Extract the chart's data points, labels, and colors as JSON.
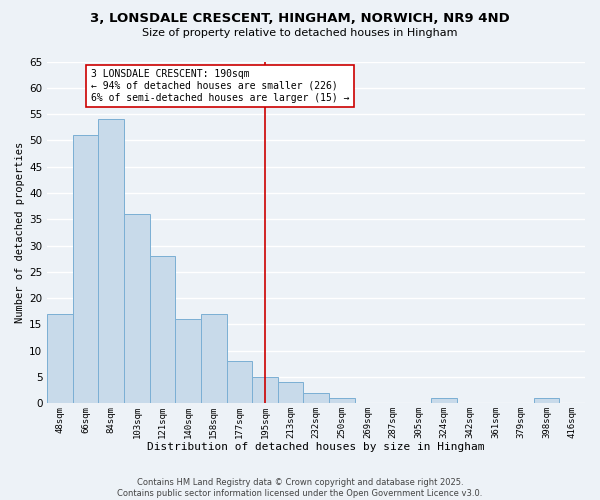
{
  "title": "3, LONSDALE CRESCENT, HINGHAM, NORWICH, NR9 4ND",
  "subtitle": "Size of property relative to detached houses in Hingham",
  "xlabel": "Distribution of detached houses by size in Hingham",
  "ylabel": "Number of detached properties",
  "bin_labels": [
    "48sqm",
    "66sqm",
    "84sqm",
    "103sqm",
    "121sqm",
    "140sqm",
    "158sqm",
    "177sqm",
    "195sqm",
    "213sqm",
    "232sqm",
    "250sqm",
    "269sqm",
    "287sqm",
    "305sqm",
    "324sqm",
    "342sqm",
    "361sqm",
    "379sqm",
    "398sqm",
    "416sqm"
  ],
  "bar_values": [
    17,
    51,
    54,
    36,
    28,
    16,
    17,
    8,
    5,
    4,
    2,
    1,
    0,
    0,
    0,
    1,
    0,
    0,
    0,
    1,
    0
  ],
  "bar_color": "#c8daea",
  "bar_edge_color": "#7bafd4",
  "vline_x": 8,
  "vline_color": "#cc0000",
  "annotation_text": "3 LONSDALE CRESCENT: 190sqm\n← 94% of detached houses are smaller (226)\n6% of semi-detached houses are larger (15) →",
  "annotation_box_color": "#ffffff",
  "annotation_box_edge": "#cc0000",
  "ylim": [
    0,
    65
  ],
  "yticks": [
    0,
    5,
    10,
    15,
    20,
    25,
    30,
    35,
    40,
    45,
    50,
    55,
    60,
    65
  ],
  "bg_color": "#edf2f7",
  "grid_color": "#ffffff",
  "footer_line1": "Contains HM Land Registry data © Crown copyright and database right 2025.",
  "footer_line2": "Contains public sector information licensed under the Open Government Licence v3.0."
}
